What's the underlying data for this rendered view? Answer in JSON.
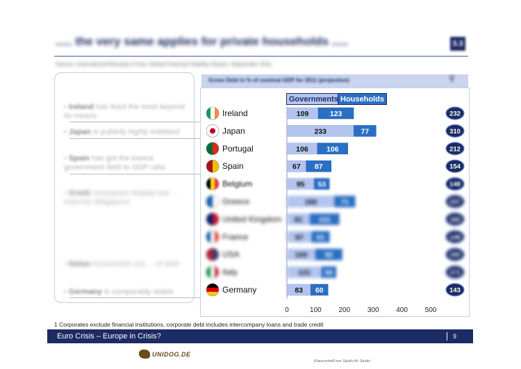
{
  "header": {
    "title": "..... the very same applies for private households .....",
    "slide_number": "3.3",
    "source": "Source: International Monetary Fund, Global Financial Stability Report, September 2011"
  },
  "left_panel": {
    "bullets": [
      {
        "strong": "Ireland",
        "rest": " has lived the most beyond its means"
      },
      {
        "strong": "Japan",
        "rest": " is publicly highly indebted"
      },
      {
        "strong": "Spain",
        "rest": " has got the lowest government debt to GDP ratio"
      },
      {
        "strong": "Greek",
        "rest": " companies display low ... external obligations"
      },
      {
        "strong": "Italian",
        "rest": " households are ... of debt"
      },
      {
        "strong": "Germany",
        "rest": " is comparably stable"
      }
    ]
  },
  "chart_header": "Gross Debt in % of nominal GDP for 2011 (projection)",
  "chart_data": {
    "type": "bar",
    "orientation": "horizontal",
    "stacked": true,
    "title": "Gross Debt in % of nominal GDP for 2011 (projection)",
    "categories": [
      "Ireland",
      "Japan",
      "Portugal",
      "Spain",
      "Belgium",
      "Greece",
      "United Kingdom",
      "France",
      "USA",
      "Italy",
      "Germany"
    ],
    "series": [
      {
        "name": "Governments",
        "color": "#b3c4ee",
        "values": [
          109,
          233,
          106,
          67,
          95,
          166,
          81,
          87,
          100,
          121,
          83
        ]
      },
      {
        "name": "Households",
        "color": "#2a6fc4",
        "values": [
          123,
          77,
          106,
          87,
          53,
          71,
          101,
          61,
          92,
          50,
          60
        ]
      }
    ],
    "totals": [
      232,
      310,
      212,
      154,
      148,
      237,
      182,
      148,
      192,
      171,
      143
    ],
    "xticks": [
      0,
      100,
      200,
      300,
      400,
      500
    ],
    "xlim": [
      0,
      500
    ],
    "legend": "top"
  },
  "footnote": "1 Corporates exclude financial institutions, corporate debt includes intercompany loans and trade credit",
  "footer": {
    "title": "Euro Crisis – Europe in Crisis?",
    "page": "9",
    "logo_text": "UNIDOG.DE",
    "tagline": "Klausurstoff von Studis für Studis"
  },
  "colors": {
    "navy": "#1c2b63",
    "gov_bar": "#b3c4ee",
    "hh_bar": "#2a6fc4"
  }
}
